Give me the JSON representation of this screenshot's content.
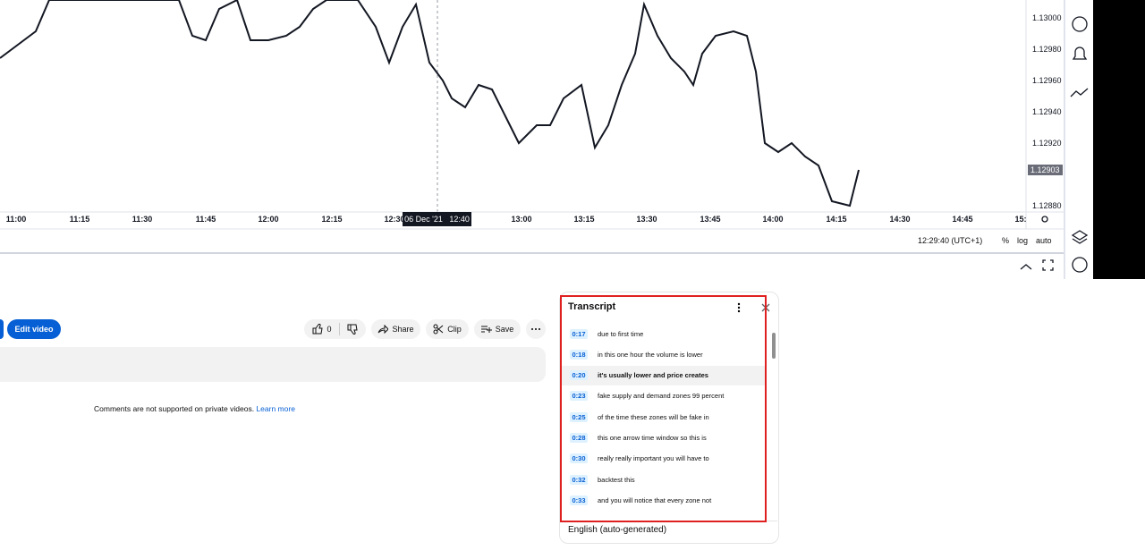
{
  "video": {
    "time_axis": [
      "11:00",
      "11:15",
      "11:30",
      "11:45",
      "12:00",
      "12:15",
      "12:30",
      "13:00",
      "13:15",
      "13:30",
      "13:45",
      "14:00",
      "14:15",
      "14:30",
      "14:45",
      "15:"
    ],
    "crosshair_date": "06 Dec '21",
    "crosshair_time": "12:40",
    "price_axis": [
      "1.13000",
      "1.12980",
      "1.12960",
      "1.12940",
      "1.12920",
      "1.12880"
    ],
    "current_price": "1.12903",
    "clock": "12:29:40 (UTC+1)",
    "scale_options": [
      "%",
      "log",
      "auto"
    ]
  },
  "actions": {
    "edit_video": "Edit video",
    "likes": "0",
    "share": "Share",
    "clip": "Clip",
    "save": "Save"
  },
  "comments": {
    "notice": "Comments are not supported on private videos.",
    "link": "Learn more"
  },
  "transcript": {
    "title": "Transcript",
    "segments": [
      {
        "time": "0:17",
        "text": "due to first time"
      },
      {
        "time": "0:18",
        "text": "in this one hour the volume is lower"
      },
      {
        "time": "0:20",
        "text": "it's usually lower and price creates"
      },
      {
        "time": "0:23",
        "text": "fake supply and demand zones 99 percent"
      },
      {
        "time": "0:25",
        "text": "of the time these zones will be fake in"
      },
      {
        "time": "0:28",
        "text": "this one arrow time window so this is"
      },
      {
        "time": "0:30",
        "text": "really really important you will have to"
      },
      {
        "time": "0:32",
        "text": "backtest this"
      },
      {
        "time": "0:33",
        "text": "and you will notice that every zone not"
      }
    ],
    "language": "English (auto-generated)"
  }
}
